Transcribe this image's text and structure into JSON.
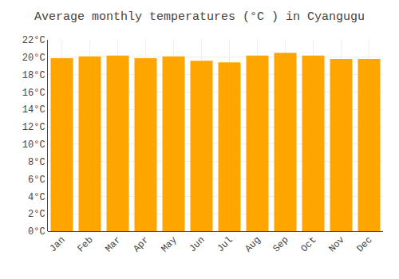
{
  "chart_data": {
    "type": "bar",
    "title": "Average monthly temperatures (°C ) in Cyangugu",
    "categories": [
      "Jan",
      "Feb",
      "Mar",
      "Apr",
      "May",
      "Jun",
      "Jul",
      "Aug",
      "Sep",
      "Oct",
      "Nov",
      "Dec"
    ],
    "values": [
      19.9,
      20.1,
      20.2,
      19.9,
      20.1,
      19.6,
      19.4,
      20.2,
      20.5,
      20.2,
      19.8,
      19.8
    ],
    "color": "#FFA500",
    "ylim": [
      0,
      22
    ],
    "yticks": [
      {
        "value": 0,
        "label": "0°C"
      },
      {
        "value": 2,
        "label": "2°C"
      },
      {
        "value": 4,
        "label": "4°C"
      },
      {
        "value": 6,
        "label": "6°C"
      },
      {
        "value": 8,
        "label": "8°C"
      },
      {
        "value": 10,
        "label": "10°C"
      },
      {
        "value": 12,
        "label": "12°C"
      },
      {
        "value": 14,
        "label": "14°C"
      },
      {
        "value": 16,
        "label": "16°C"
      },
      {
        "value": 18,
        "label": "18°C"
      },
      {
        "value": 20,
        "label": "20°C"
      },
      {
        "value": 22,
        "label": "22°C"
      }
    ],
    "grid": true
  }
}
